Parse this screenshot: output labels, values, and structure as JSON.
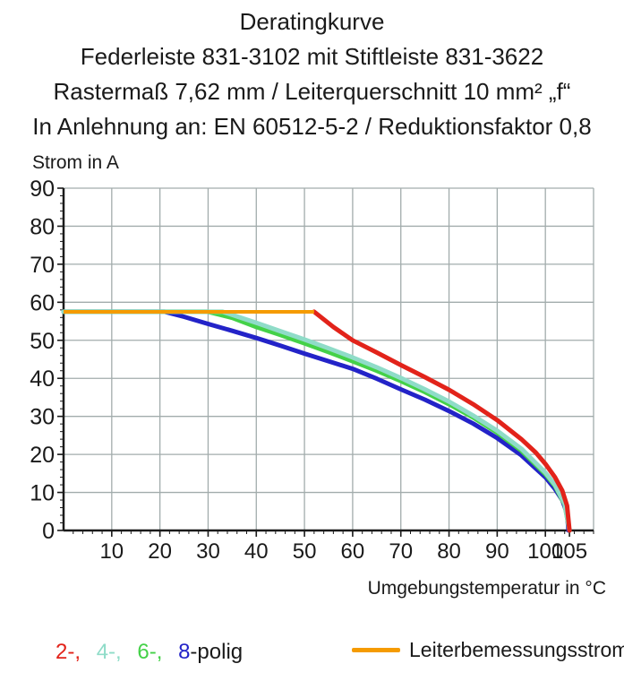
{
  "header": {
    "lines": [
      "Deratingkurve",
      "Federleiste 831-3102 mit Stiftleiste 831-3622",
      "Rastermaß 7,62 mm / Leiterquerschnitt 10 mm² „f“",
      "In Anlehnung an: EN 60512-5-2 / Reduktionsfaktor 0,8"
    ]
  },
  "chart_data": {
    "type": "line",
    "title": "Deratingkurve",
    "xlabel": "Umgebungstemperatur in °C",
    "ylabel": "Strom in A",
    "xlim": [
      0,
      110
    ],
    "ylim": [
      0,
      90
    ],
    "grid": true,
    "grid_step": 10,
    "minor_tick_step": 2,
    "x_tick_values": [
      10,
      20,
      30,
      40,
      50,
      60,
      70,
      80,
      90,
      100,
      105
    ],
    "x_tick_labels": [
      "10",
      "20",
      "30",
      "40",
      "50",
      "60",
      "70",
      "80",
      "90",
      "100",
      "105"
    ],
    "y_tick_values": [
      0,
      10,
      20,
      30,
      40,
      50,
      60,
      70,
      80,
      90
    ],
    "y_tick_labels": [
      "0",
      "10",
      "20",
      "30",
      "40",
      "50",
      "60",
      "70",
      "80",
      "90"
    ],
    "colors": {
      "grid": "#a2acac",
      "axis": "#1a1a1a",
      "text": "#1a1a1a"
    },
    "series": [
      {
        "name": "8-polig",
        "color": "#2323c8",
        "points": [
          [
            0,
            57.5
          ],
          [
            21,
            57.5
          ],
          [
            25,
            56.2
          ],
          [
            30,
            54.3
          ],
          [
            35,
            52.5
          ],
          [
            40,
            50.6
          ],
          [
            45,
            48.6
          ],
          [
            50,
            46.5
          ],
          [
            55,
            44.5
          ],
          [
            60,
            42.5
          ],
          [
            65,
            39.9
          ],
          [
            70,
            37.1
          ],
          [
            75,
            34.4
          ],
          [
            80,
            31.4
          ],
          [
            85,
            28.1
          ],
          [
            90,
            24.3
          ],
          [
            95,
            19.8
          ],
          [
            100,
            14.0
          ],
          [
            102,
            10.9
          ],
          [
            103.5,
            8.0
          ],
          [
            104.5,
            4.5
          ],
          [
            104.8,
            0
          ]
        ]
      },
      {
        "name": "6-polig",
        "color": "#44d148",
        "points": [
          [
            0,
            57.5
          ],
          [
            30,
            57.5
          ],
          [
            35,
            55.9
          ],
          [
            40,
            53.5
          ],
          [
            45,
            51.4
          ],
          [
            50,
            49.2
          ],
          [
            55,
            46.9
          ],
          [
            60,
            44.5
          ],
          [
            65,
            42.0
          ],
          [
            70,
            39.3
          ],
          [
            75,
            36.4
          ],
          [
            80,
            33.2
          ],
          [
            85,
            29.7
          ],
          [
            90,
            25.7
          ],
          [
            95,
            21.0
          ],
          [
            100,
            14.8
          ],
          [
            102,
            11.7
          ],
          [
            104,
            6.8
          ],
          [
            105,
            0
          ]
        ]
      },
      {
        "name": "4-polig",
        "color": "#8fdcc8",
        "points": [
          [
            0,
            57.5
          ],
          [
            33,
            57.5
          ],
          [
            40,
            54.6
          ],
          [
            45,
            52.4
          ],
          [
            50,
            50.2
          ],
          [
            55,
            47.9
          ],
          [
            60,
            45.5
          ],
          [
            65,
            42.9
          ],
          [
            70,
            40.1
          ],
          [
            75,
            37.1
          ],
          [
            80,
            33.9
          ],
          [
            85,
            30.2
          ],
          [
            90,
            26.2
          ],
          [
            95,
            21.5
          ],
          [
            100,
            15.2
          ],
          [
            102,
            12.0
          ],
          [
            104,
            7.0
          ],
          [
            105,
            0
          ]
        ]
      },
      {
        "name": "2-polig",
        "color": "#e2231a",
        "points": [
          [
            52,
            57.5
          ],
          [
            56,
            53.5
          ],
          [
            60,
            50.0
          ],
          [
            65,
            46.8
          ],
          [
            70,
            43.5
          ],
          [
            75,
            40.3
          ],
          [
            80,
            37.0
          ],
          [
            85,
            33.2
          ],
          [
            90,
            29.0
          ],
          [
            95,
            24.0
          ],
          [
            98,
            20.5
          ],
          [
            100,
            17.5
          ],
          [
            102,
            14.0
          ],
          [
            103.5,
            10.5
          ],
          [
            104.5,
            6.5
          ],
          [
            105,
            0
          ]
        ]
      }
    ],
    "reference_line": {
      "name": "Leiterbemessungsstrom",
      "color": "#f59b00",
      "current_a": 57.5,
      "temp_start": 0,
      "temp_end": 52
    }
  },
  "legend": {
    "pole_items": [
      {
        "label": "2-,",
        "color": "#e2231a"
      },
      {
        "label": "4-,",
        "color": "#8fdcc8"
      },
      {
        "label": "6-,",
        "color": "#44d148"
      },
      {
        "label": "8",
        "color": "#2323c8"
      }
    ],
    "suffix": "-polig",
    "reference_label": "Leiterbemessungsstrom",
    "reference_color": "#f59b00"
  }
}
